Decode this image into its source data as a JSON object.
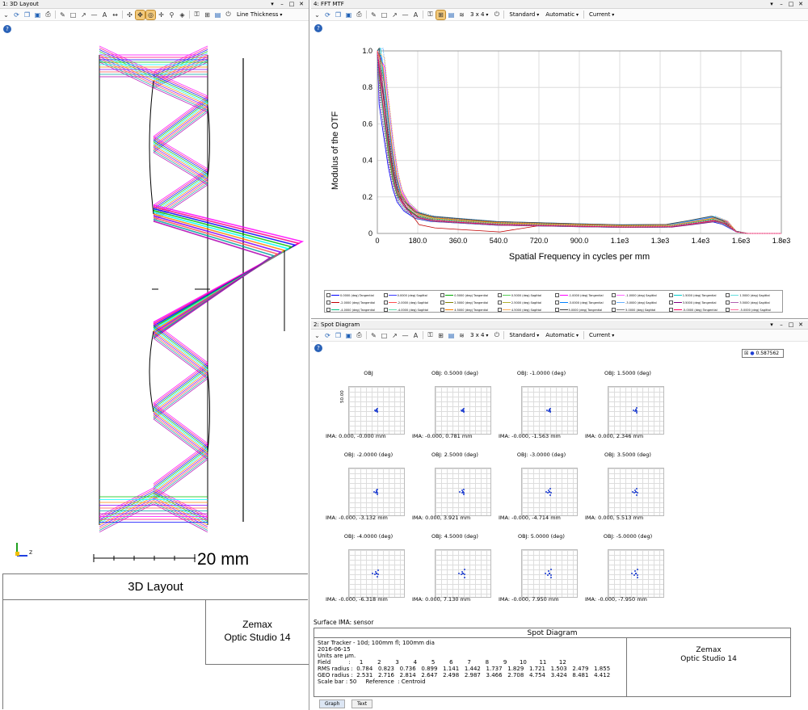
{
  "layout_window": {
    "title": "1: 3D Layout",
    "controls": [
      "▾",
      "–",
      "□",
      "✕"
    ],
    "line_thickness": "Line Thickness",
    "scale_label": "20 mm",
    "axis_label": "Z",
    "footer_title": "3D Layout",
    "brand_line1": "Zemax",
    "brand_line2": "Optic Studio 14"
  },
  "mtf_window": {
    "title": "4: FFT MTF",
    "controls": [
      "▾",
      "–",
      "□",
      "✕"
    ],
    "grid_label": "3 x 4",
    "dd_standard": "Standard",
    "dd_automatic": "Automatic",
    "dd_current": "Current"
  },
  "spot_window": {
    "title": "2: Spot Diagram",
    "controls": [
      "▾",
      "–",
      "□",
      "✕"
    ],
    "grid_label": "3 x 4",
    "dd_standard": "Standard",
    "dd_automatic": "Automatic",
    "dd_current": "Current",
    "legend_value": "0.587562",
    "scale_label": "50.00",
    "surface_label": "Surface IMA: sensor",
    "footer_title": "Spot Diagram",
    "brand_line1": "Zemax",
    "brand_line2": "Optic Studio 14",
    "info_lines": [
      "Star Tracker - 10d; 100mm fl; 100mm dia",
      "2016-06-15",
      "Units are µm.",
      "Field          :     1        2        3        4        5        6        7        8        9       10       11       12",
      "RMS radius :  0.784   0.823   0.736   0.899   1.141   1.442   1.737   1.829   1.721   1.503   2.479   1.855",
      "GEO radius :  2.531   2.716   2.814   2.647   2.498   2.987   3.466   2.708   4.754   3.424   8.481   4.412",
      "Scale bar : 50     Reference  : Centroid"
    ],
    "tabs": [
      "Graph",
      "Text"
    ],
    "spots": [
      {
        "obj": "OBJ",
        "ima": "IMA: 0.000, -0.000 mm"
      },
      {
        "obj": "OBJ: 0.5000 (deg)",
        "ima": "IMA: -0.000, 0.781 mm"
      },
      {
        "obj": "OBJ: -1.0000 (deg)",
        "ima": "IMA: -0.000, -1.563 mm"
      },
      {
        "obj": "OBJ: 1.5000 (deg)",
        "ima": "IMA: 0.000, 2.346 mm"
      },
      {
        "obj": "OBJ: -2.0000 (deg)",
        "ima": "IMA: -0.000, -3.132 mm"
      },
      {
        "obj": "OBJ: 2.5000 (deg)",
        "ima": "IMA: 0.000, 3.921 mm"
      },
      {
        "obj": "OBJ: -3.0000 (deg)",
        "ima": "IMA: -0.000, -4.714 mm"
      },
      {
        "obj": "OBJ: 3.5000 (deg)",
        "ima": "IMA: 0.000, 5.513 mm"
      },
      {
        "obj": "OBJ: -4.0000 (deg)",
        "ima": "IMA: -0.000, -6.318 mm"
      },
      {
        "obj": "OBJ: 4.5000 (deg)",
        "ima": "IMA: 0.000, 7.130 mm"
      },
      {
        "obj": "OBJ: 5.0000 (deg)",
        "ima": "IMA: -0.000, 7.950 mm"
      },
      {
        "obj": "OBJ: -5.0000 (deg)",
        "ima": "IMA: -0.000, -7.950 mm"
      }
    ]
  },
  "chart_data": {
    "type": "line",
    "title": "",
    "xlabel": "Spatial Frequency in cycles per mm",
    "ylabel": "Modulus of the OTF",
    "xlim": [
      0,
      1800
    ],
    "ylim": [
      0,
      1.0
    ],
    "xticks": [
      "0",
      "180.0",
      "360.0",
      "540.0",
      "720.0",
      "900.0",
      "1.1e3",
      "1.3e3",
      "1.4e3",
      "1.6e3",
      "1.8e3"
    ],
    "yticks": [
      "0",
      "0.2",
      "0.4",
      "0.6",
      "0.8",
      "1.0"
    ],
    "legend": [
      "0.0000 (deg) Tangential",
      "0.0000 (deg) Sagittal",
      "0.5000 (deg) Tangential",
      "0.5000 (deg) Sagittal",
      "-1.0000 (deg) Tangential",
      "-1.0000 (deg) Sagittal",
      "1.5000 (deg) Tangential",
      "1.5000 (deg) Sagittal",
      "-2.0000 (deg) Tangential",
      "-2.0000 (deg) Sagittal",
      "2.5000 (deg) Tangential",
      "2.5000 (deg) Sagittal",
      "-3.0000 (deg) Tangential",
      "-3.0000 (deg) Sagittal",
      "3.5000 (deg) Tangential",
      "3.5000 (deg) Sagittal",
      "-4.0000 (deg) Tangential",
      "-4.0000 (deg) Sagittal",
      "4.5000 (deg) Tangential",
      "4.5000 (deg) Sagittal",
      "5.0000 (deg) Tangential",
      "5.0000 (deg) Sagittal",
      "-5.0000 (deg) Tangential",
      "-5.0000 (deg) Sagittal"
    ],
    "colors": [
      "#0000ff",
      "#3a3aff",
      "#00aa00",
      "#55cc55",
      "#ff00ff",
      "#ff66ff",
      "#00cccc",
      "#66dddd",
      "#c00000",
      "#ff5050",
      "#808000",
      "#b0b030",
      "#0080ff",
      "#66b0ff",
      "#800080",
      "#b060b0",
      "#00c080",
      "#60e0b0",
      "#ff8000",
      "#ffb060",
      "#404040",
      "#808080",
      "#ff0060",
      "#ff70a0"
    ],
    "series_template": [
      [
        0,
        1.0
      ],
      [
        20,
        0.86
      ],
      [
        40,
        0.65
      ],
      [
        60,
        0.45
      ],
      [
        80,
        0.3
      ],
      [
        100,
        0.21
      ],
      [
        130,
        0.15
      ],
      [
        180,
        0.1
      ],
      [
        250,
        0.08
      ],
      [
        360,
        0.07
      ],
      [
        540,
        0.055
      ],
      [
        720,
        0.05
      ],
      [
        900,
        0.045
      ],
      [
        1100,
        0.04
      ],
      [
        1300,
        0.042
      ],
      [
        1400,
        0.06
      ],
      [
        1500,
        0.08
      ],
      [
        1550,
        0.06
      ],
      [
        1600,
        0.01
      ],
      [
        1650,
        0.0
      ],
      [
        1800,
        0.0
      ]
    ]
  },
  "layout_rays": {
    "colors": [
      "#ff00ff",
      "#ff0080",
      "#0000ff",
      "#00c000",
      "#00ffff",
      "#ff8000",
      "#8000ff",
      "#ff5050",
      "#00a0a0",
      "#b000b0"
    ]
  }
}
